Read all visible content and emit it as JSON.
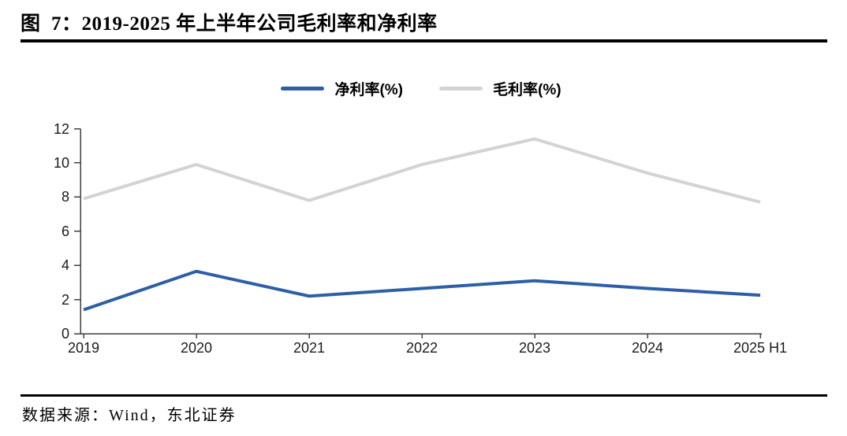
{
  "page": {
    "title": "图  7：2019-2025 年上半年公司毛利率和净利率",
    "source_note": "数据来源：Wind，东北证券"
  },
  "chart_data": {
    "type": "line",
    "title": "2019-2025 年上半年公司毛利率和净利率",
    "categories": [
      "2019",
      "2020",
      "2021",
      "2022",
      "2023",
      "2024",
      "2025 H1"
    ],
    "series": [
      {
        "name": "净利率(%)",
        "color": "#2D5FA6",
        "values": [
          1.4,
          3.65,
          2.2,
          2.65,
          3.1,
          2.65,
          2.25
        ]
      },
      {
        "name": "毛利率(%)",
        "color": "#D3D3D3",
        "values": [
          7.9,
          9.9,
          7.8,
          9.9,
          11.4,
          9.4,
          7.7
        ]
      }
    ],
    "ylim": [
      0,
      12
    ],
    "yticks": [
      0,
      2,
      4,
      6,
      8,
      10,
      12
    ],
    "legend_position": "top-center",
    "grid": false,
    "line_width": 4,
    "axis_color": "#404040",
    "label_color": "#1a1a1a"
  }
}
